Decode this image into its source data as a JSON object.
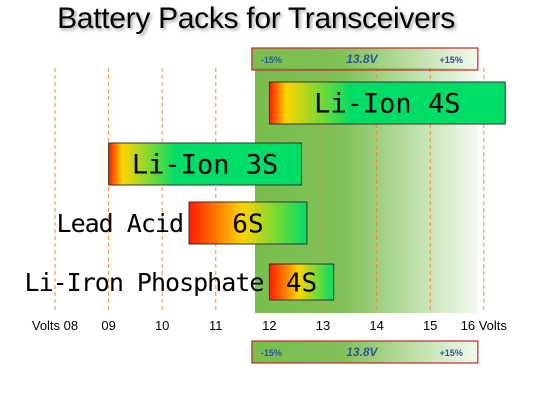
{
  "title": "Battery Packs for Transceivers",
  "chart_data": {
    "type": "range-bar",
    "title": "Battery Packs for Transceivers",
    "xlim": [
      7.2,
      16.2
    ],
    "x_ticks": [
      {
        "value": 8,
        "label": "Volts 08"
      },
      {
        "value": 9,
        "label": "09"
      },
      {
        "value": 10,
        "label": "10"
      },
      {
        "value": 11,
        "label": "11"
      },
      {
        "value": 12,
        "label": "12"
      },
      {
        "value": 13,
        "label": "13"
      },
      {
        "value": 14,
        "label": "14"
      },
      {
        "value": 15,
        "label": "15"
      },
      {
        "value": 16,
        "label": "16 Volts"
      }
    ],
    "grid": "vertical dashed",
    "nominal_voltage": 13.8,
    "tolerance_band": {
      "low": 11.73,
      "high": 15.87,
      "center_label": "13.8V",
      "low_label": "-15%",
      "high_label": "+15%"
    },
    "bars": [
      {
        "name": "Li-Ion 4S",
        "label": "Li-Ion 4S",
        "start": 12.0,
        "end": 16.4,
        "mode": "full"
      },
      {
        "name": "Li-Ion 3S",
        "label": "Li-Ion 3S",
        "start": 9.0,
        "end": 12.6,
        "mode": "full"
      },
      {
        "name": "Lead Acid 6S",
        "label": "6S",
        "outside_label": "Lead Acid",
        "start": 10.5,
        "end": 12.7,
        "mode": "side"
      },
      {
        "name": "Li-Iron Phosphate 4S",
        "label": "4S",
        "outside_label": "Li-Iron Phosphate",
        "start": 12.0,
        "end": 13.2,
        "mode": "side"
      }
    ],
    "colors": {
      "grad_start": "#ff1a00",
      "grad_mid": "#ffd400",
      "grad_end": "#00dd66",
      "band": "#6ab63a",
      "band_border": "#c0282d",
      "tol_text": "#2f5597",
      "gridline": "#f08a3c"
    }
  }
}
